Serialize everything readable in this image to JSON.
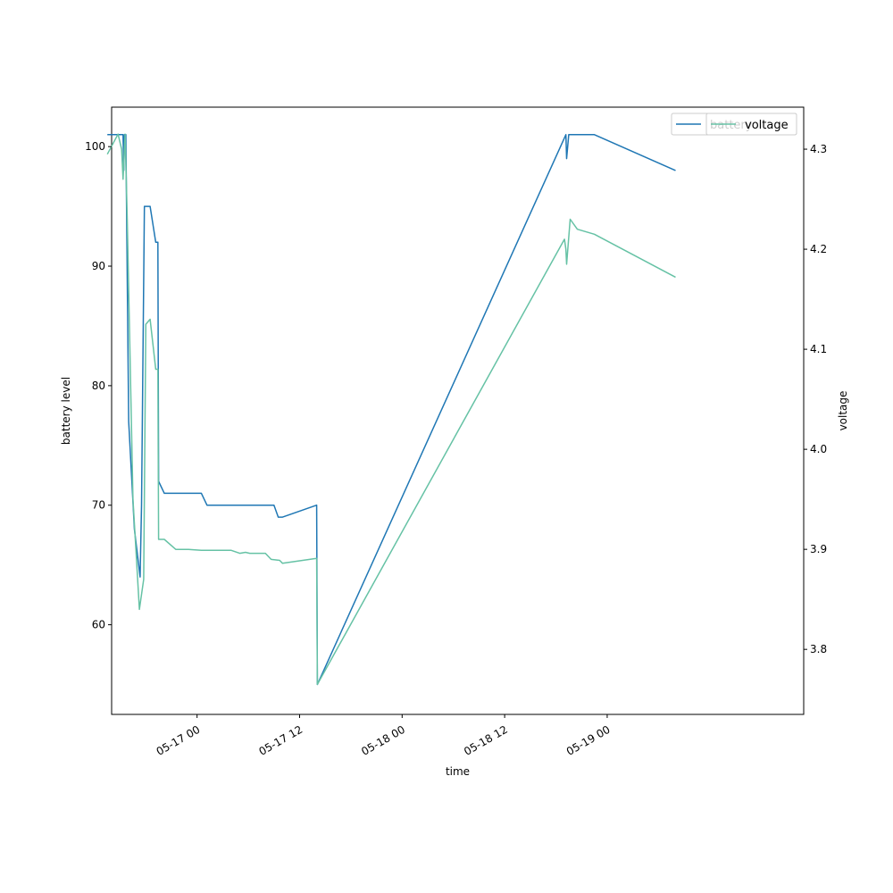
{
  "chart_data": {
    "type": "line",
    "xlabel": "time",
    "ylabel_left": "battery level",
    "ylabel_right": "voltage",
    "x_axis": {
      "type": "datetime",
      "range": [
        "2023-05-16 14:00",
        "2023-05-19 23:00"
      ]
    },
    "y_left_range": [
      52.5,
      103.3
    ],
    "y_right_range": [
      3.735,
      4.342
    ],
    "x_ticks": [
      {
        "t": "2023-05-17 00:00",
        "label": "05-17 00"
      },
      {
        "t": "2023-05-17 12:00",
        "label": "05-17 12"
      },
      {
        "t": "2023-05-18 00:00",
        "label": "05-18 00"
      },
      {
        "t": "2023-05-18 12:00",
        "label": "05-18 12"
      },
      {
        "t": "2023-05-19 00:00",
        "label": "05-19 00"
      }
    ],
    "y_left_ticks": [
      60,
      70,
      80,
      90,
      100
    ],
    "y_right_ticks": [
      3.8,
      3.9,
      4.0,
      4.1,
      4.2,
      4.3
    ],
    "legend_left": {
      "position": "top-right",
      "entries": [
        "battery"
      ]
    },
    "legend_right": {
      "position": "top-right",
      "entries": [
        "voltage"
      ]
    },
    "series": [
      {
        "name": "battery",
        "axis": "left",
        "color": "#1f77b4",
        "points": [
          [
            "2023-05-16 13:30",
            101
          ],
          [
            "2023-05-16 15:00",
            101
          ],
          [
            "2023-05-16 15:20",
            101
          ],
          [
            "2023-05-16 15:25",
            98
          ],
          [
            "2023-05-16 15:30",
            101
          ],
          [
            "2023-05-16 15:40",
            101
          ],
          [
            "2023-05-16 16:00",
            77
          ],
          [
            "2023-05-16 16:40",
            68
          ],
          [
            "2023-05-16 17:20",
            64
          ],
          [
            "2023-05-16 17:30",
            70
          ],
          [
            "2023-05-16 17:50",
            95
          ],
          [
            "2023-05-16 18:30",
            95
          ],
          [
            "2023-05-16 19:10",
            92
          ],
          [
            "2023-05-16 19:25",
            92
          ],
          [
            "2023-05-16 19:30",
            72
          ],
          [
            "2023-05-16 20:10",
            71
          ],
          [
            "2023-05-17 00:30",
            71
          ],
          [
            "2023-05-17 01:10",
            70
          ],
          [
            "2023-05-17 09:00",
            70
          ],
          [
            "2023-05-17 09:30",
            69
          ],
          [
            "2023-05-17 10:00",
            69
          ],
          [
            "2023-05-17 14:00",
            70
          ],
          [
            "2023-05-17 14:05",
            55
          ],
          [
            "2023-05-18 19:10",
            101
          ],
          [
            "2023-05-18 19:15",
            99
          ],
          [
            "2023-05-18 19:30",
            101
          ],
          [
            "2023-05-18 20:30",
            101
          ],
          [
            "2023-05-18 22:30",
            101
          ],
          [
            "2023-05-19 08:00",
            98
          ]
        ]
      },
      {
        "name": "voltage",
        "axis": "right",
        "color": "#66c2a5",
        "points": [
          [
            "2023-05-16 13:30",
            4.295
          ],
          [
            "2023-05-16 14:45",
            4.315
          ],
          [
            "2023-05-16 15:10",
            4.3
          ],
          [
            "2023-05-16 15:20",
            4.27
          ],
          [
            "2023-05-16 15:35",
            4.315
          ],
          [
            "2023-05-16 15:50",
            4.23
          ],
          [
            "2023-05-16 16:30",
            3.95
          ],
          [
            "2023-05-16 17:15",
            3.84
          ],
          [
            "2023-05-16 17:45",
            3.87
          ],
          [
            "2023-05-16 18:00",
            4.125
          ],
          [
            "2023-05-16 18:30",
            4.13
          ],
          [
            "2023-05-16 19:10",
            4.08
          ],
          [
            "2023-05-16 19:25",
            4.08
          ],
          [
            "2023-05-16 19:30",
            3.91
          ],
          [
            "2023-05-16 20:10",
            3.91
          ],
          [
            "2023-05-16 21:30",
            3.9
          ],
          [
            "2023-05-16 23:00",
            3.9
          ],
          [
            "2023-05-17 00:30",
            3.899
          ],
          [
            "2023-05-17 04:00",
            3.899
          ],
          [
            "2023-05-17 05:00",
            3.896
          ],
          [
            "2023-05-17 05:40",
            3.897
          ],
          [
            "2023-05-17 06:10",
            3.896
          ],
          [
            "2023-05-17 08:00",
            3.896
          ],
          [
            "2023-05-17 08:40",
            3.89
          ],
          [
            "2023-05-17 09:40",
            3.889
          ],
          [
            "2023-05-17 10:00",
            3.886
          ],
          [
            "2023-05-17 14:00",
            3.891
          ],
          [
            "2023-05-17 14:05",
            3.765
          ],
          [
            "2023-05-18 19:00",
            4.21
          ],
          [
            "2023-05-18 19:10",
            4.2
          ],
          [
            "2023-05-18 19:15",
            4.185
          ],
          [
            "2023-05-18 19:40",
            4.23
          ],
          [
            "2023-05-18 20:30",
            4.22
          ],
          [
            "2023-05-18 22:30",
            4.215
          ],
          [
            "2023-05-19 08:00",
            4.172
          ]
        ]
      }
    ]
  }
}
